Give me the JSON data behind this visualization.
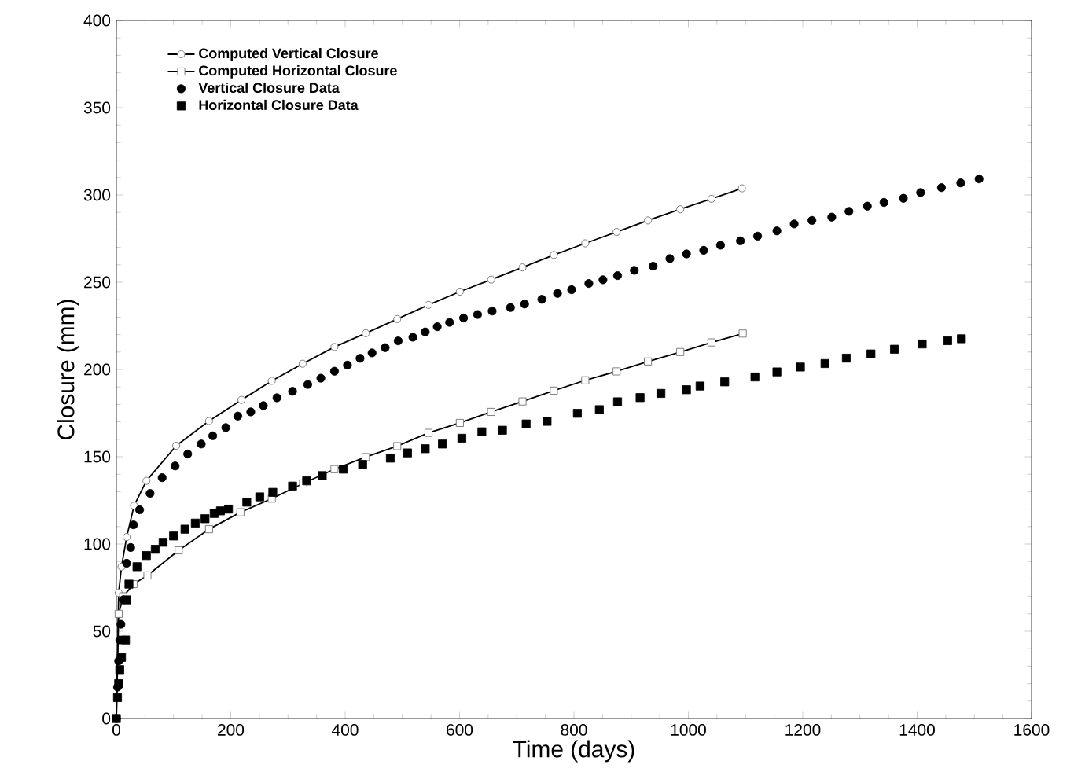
{
  "chart_data": {
    "type": "line",
    "xlabel": "Time (days)",
    "ylabel": "Closure (mm)",
    "xlim": [
      0,
      1600
    ],
    "ylim": [
      0,
      400
    ],
    "xticks": [
      0,
      200,
      400,
      600,
      800,
      1000,
      1200,
      1400,
      1600
    ],
    "yticks": [
      0,
      50,
      100,
      150,
      200,
      250,
      300,
      350,
      400
    ],
    "legend": "top left",
    "series": [
      {
        "name": "Computed Vertical Closure",
        "marker": "circle",
        "color": "#000000",
        "x": [
          0,
          4,
          9,
          18,
          31,
          52.5,
          104.6,
          162,
          218.7,
          271.7,
          325.6,
          381.3,
          436,
          491,
          545.7,
          600.5,
          655.3,
          710,
          764.8,
          819.7,
          874.5,
          929.3,
          985.8,
          1040.5,
          1093.7
        ],
        "values": [
          0,
          72,
          87,
          104,
          122,
          136.2,
          156.3,
          170.5,
          182.6,
          193.5,
          203.3,
          212.9,
          220.8,
          228.9,
          237,
          244.6,
          251.5,
          258.5,
          265.6,
          272.3,
          278.8,
          285.4,
          291.8,
          297.8,
          303.8
        ]
      },
      {
        "name": "Computed Horizontal Closure",
        "marker": "square",
        "color": "#000000",
        "x": [
          0,
          4,
          12,
          30,
          54.3,
          109,
          162,
          216.9,
          271.7,
          326.5,
          381.3,
          436,
          491,
          545.7,
          600.5,
          655.3,
          710,
          764.8,
          819.7,
          874.5,
          929.3,
          985.8,
          1040.5,
          1095
        ],
        "values": [
          0,
          60,
          70,
          77,
          82,
          96.4,
          108.5,
          118.2,
          126,
          134.7,
          142.9,
          149.8,
          156.1,
          163.7,
          169.4,
          175.7,
          181.7,
          187.9,
          193.8,
          198.9,
          204.6,
          210,
          215.5,
          220.6
        ]
      },
      {
        "name": "Vertical Closure Data",
        "type": "scatter",
        "marker": "circle",
        "color": "#000000",
        "x": [
          0,
          2,
          4,
          6,
          8,
          12,
          18,
          25,
          30,
          40.6,
          58.9,
          80,
          102.7,
          124.7,
          148.4,
          168.5,
          191.3,
          212.3,
          235,
          257,
          280.8,
          308,
          334.6,
          357.5,
          381.3,
          404,
          426,
          447,
          470,
          492.7,
          518.4,
          540,
          561,
          582.5,
          607,
          631.5,
          657,
          689,
          713.7,
          743.8,
          771.2,
          795.9,
          826,
          850.7,
          876.2,
          905.5,
          938.4,
          967.7,
          996.7,
          1026.8,
          1056.2,
          1091,
          1121,
          1154.8,
          1185,
          1216,
          1250.7,
          1280.8,
          1312.9,
          1342,
          1375.9,
          1406,
          1442.5,
          1476.2,
          1508.2
        ],
        "values": [
          0,
          18,
          33,
          45,
          54,
          68,
          89,
          98,
          111,
          119.6,
          129,
          138,
          144.7,
          151.6,
          157.3,
          162,
          166.7,
          173.3,
          175.7,
          179.3,
          183.8,
          187.5,
          191.4,
          195,
          199,
          202.5,
          206.4,
          209.5,
          212.5,
          216.4,
          218.5,
          221.5,
          224.5,
          227,
          229.5,
          231.5,
          233.5,
          235.5,
          237.5,
          240.2,
          243.6,
          245.7,
          249.3,
          251.4,
          253.8,
          256.8,
          259.2,
          263.5,
          266.2,
          268.3,
          271.2,
          273.7,
          276.4,
          279.4,
          283.4,
          285.4,
          287.3,
          290.6,
          293.6,
          295.7,
          298.1,
          301.4,
          304.2,
          306.9,
          309.2
        ]
      },
      {
        "name": "Horizontal Closure Data",
        "type": "scatter",
        "marker": "square",
        "color": "#000000",
        "x": [
          0,
          2,
          4,
          6,
          9,
          16,
          18,
          22,
          36,
          52.5,
          68,
          81.7,
          100,
          120,
          138,
          155,
          171,
          182,
          196,
          228,
          250.7,
          273.5,
          308,
          332.6,
          360,
          396.8,
          430.5,
          479,
          509,
          540,
          570,
          604,
          639,
          675,
          716.4,
          753,
          806,
          844.4,
          876.2,
          915.6,
          952,
          996.7,
          1020.5,
          1063.5,
          1116.4,
          1154.8,
          1195.9,
          1238.9,
          1276.2,
          1319.2,
          1360.3,
          1408.8,
          1453.4,
          1477.3
        ],
        "values": [
          0,
          12,
          20,
          28,
          35,
          45,
          68,
          77,
          87,
          93.4,
          97,
          101,
          104.6,
          108.5,
          112,
          114.5,
          117.5,
          119,
          120,
          124,
          127,
          129.6,
          133.2,
          136.2,
          139.2,
          142.9,
          145.6,
          149.2,
          152.2,
          154.6,
          157.3,
          160.6,
          164.3,
          165.2,
          168.8,
          170.3,
          174.9,
          177,
          181.5,
          183.9,
          186.3,
          188.4,
          190.5,
          192.9,
          195.7,
          198.6,
          201.4,
          203.4,
          206.5,
          208.9,
          211.6,
          214.6,
          216.5,
          217.6
        ]
      }
    ]
  }
}
